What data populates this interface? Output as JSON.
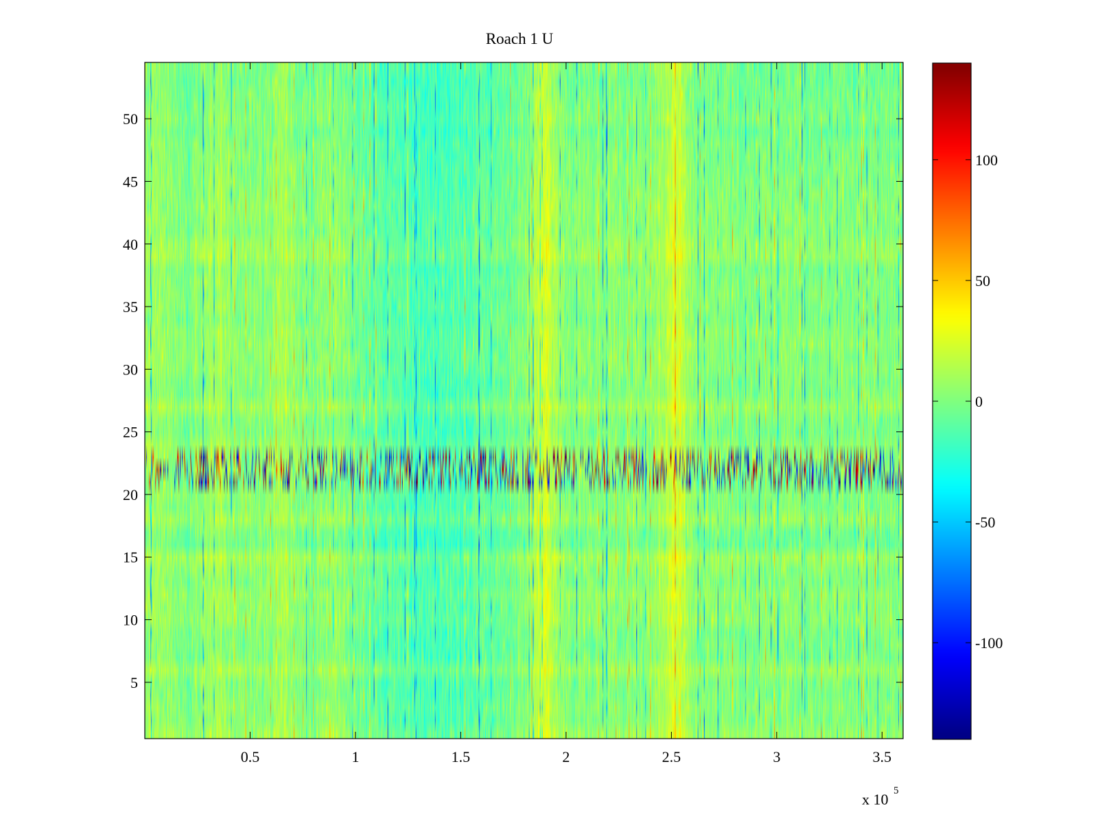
{
  "chart_data": {
    "type": "heatmap",
    "title": "Roach 1 U",
    "xlabel": "",
    "ylabel": "",
    "colormap": "jet",
    "x_range": [
      1,
      360000
    ],
    "y_range": [
      1,
      54
    ],
    "x_scale_label": {
      "base": "x 10",
      "exponent": "5"
    },
    "x_ticks": [
      {
        "value": 50000,
        "label": "0.5"
      },
      {
        "value": 100000,
        "label": "1"
      },
      {
        "value": 150000,
        "label": "1.5"
      },
      {
        "value": 200000,
        "label": "2"
      },
      {
        "value": 250000,
        "label": "2.5"
      },
      {
        "value": 300000,
        "label": "3"
      },
      {
        "value": 350000,
        "label": "3.5"
      }
    ],
    "y_ticks": [
      {
        "value": 5,
        "label": "5"
      },
      {
        "value": 10,
        "label": "10"
      },
      {
        "value": 15,
        "label": "15"
      },
      {
        "value": 20,
        "label": "20"
      },
      {
        "value": 25,
        "label": "25"
      },
      {
        "value": 30,
        "label": "30"
      },
      {
        "value": 35,
        "label": "35"
      },
      {
        "value": 40,
        "label": "40"
      },
      {
        "value": 45,
        "label": "45"
      },
      {
        "value": 50,
        "label": "50"
      }
    ],
    "colorbar": {
      "range": [
        -140,
        140
      ],
      "ticks": [
        {
          "value": 100,
          "label": "100"
        },
        {
          "value": 50,
          "label": "50"
        },
        {
          "value": 0,
          "label": "0"
        },
        {
          "value": -50,
          "label": "-50"
        },
        {
          "value": -100,
          "label": "-100"
        }
      ]
    },
    "grid": false,
    "features": {
      "strong_band_rows": [
        21,
        23
      ],
      "warm_columns": [
        5000,
        35000,
        65000,
        90000,
        190000,
        252000
      ],
      "cool_region": [
        100000,
        170000
      ]
    }
  }
}
